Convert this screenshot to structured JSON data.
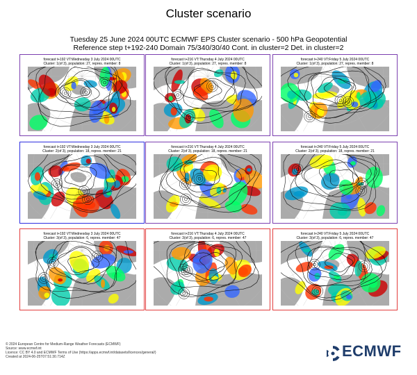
{
  "title": "Cluster scenario",
  "subtitle_line1": "Tuesday 25 June 2024 00UTC ECMWF EPS Cluster scenario - 500 hPa Geopotential",
  "subtitle_line2": "Reference step t+192-240 Domain 75/340/30/40 Cont. in cluster=2 Det. in cluster=2",
  "colors": {
    "cluster1_border": "#7b3fb0",
    "cluster2_border": "#2d2de0",
    "cluster3_border": "#e23b3b",
    "land": "#9c9c9c",
    "anomaly_colors": [
      "#ffff00",
      "#ff9900",
      "#ff3300",
      "#cc0000",
      "#00ff66",
      "#00ccaa",
      "#0099cc",
      "#3366ff"
    ]
  },
  "panels": [
    {
      "forecast": "forecast t+192 VT:Wednesday 3 July 2024 00UTC",
      "cluster": "Cluster: 1(of 3), population: 27, repres. member: 8",
      "border": "cluster1_border"
    },
    {
      "forecast": "forecast t+216 VT:Thursday 4 July 2024 00UTC",
      "cluster": "Cluster: 1(of 3), population: 27, repres. member: 8",
      "border": "cluster1_border"
    },
    {
      "forecast": "forecast t+240 VT:Friday 5 July 2024 00UTC",
      "cluster": "Cluster: 1(of 3), population: 27, repres. member: 8",
      "border": "cluster1_border"
    },
    {
      "forecast": "forecast t+192 VT:Wednesday 3 July 2024 00UTC",
      "cluster": "Cluster: 2(of 3), population: 18, repres. member: 21",
      "border": "cluster2_border"
    },
    {
      "forecast": "forecast t+216 VT:Thursday 4 July 2024 00UTC",
      "cluster": "Cluster: 2(of 3), population: 18, repres. member: 21",
      "border": "cluster1_border"
    },
    {
      "forecast": "forecast t+240 VT:Friday 5 July 2024 00UTC",
      "cluster": "Cluster: 2(of 3), population: 18, repres. member: 21",
      "border": "cluster1_border"
    },
    {
      "forecast": "forecast t+192 VT:Wednesday 3 July 2024 00UTC",
      "cluster": "Cluster: 3(of 3), population: 6, repres. member: 47",
      "border": "cluster3_border"
    },
    {
      "forecast": "forecast t+216 VT:Thursday 4 July 2024 00UTC",
      "cluster": "Cluster: 3(of 3), population: 6, repres. member: 47",
      "border": "cluster3_border"
    },
    {
      "forecast": "forecast t+240 VT:Friday 5 July 2024 00UTC",
      "cluster": "Cluster: 3(of 3), population: 6, repres. member: 47",
      "border": "cluster3_border"
    }
  ],
  "footer": {
    "line1": "© 2024 European Centre for Medium-Range Weather Forecasts (ECMWF)",
    "line2": "Source: www.ecmwf.int",
    "line3": "Licence: CC BY 4.0 and ECMWF Terms of Use (https://apps.ecmwf.int/datasets/licences/general/)",
    "line4": "Created at 2024-06-25T07:51:30.714Z"
  },
  "logo": {
    "text": "ECMWF",
    "icon": "ecmwf-logo-icon"
  }
}
